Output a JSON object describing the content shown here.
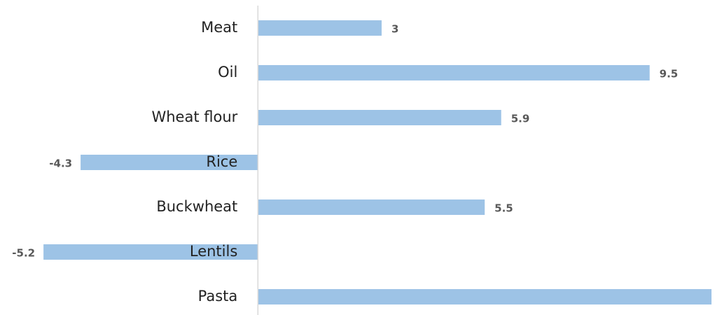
{
  "chart_data": {
    "type": "barh",
    "categories": [
      "Meat",
      "Oil",
      "Wheat flour",
      "Rice",
      "Buckwheat",
      "Lentils",
      "Pasta"
    ],
    "values": [
      3,
      9.5,
      5.9,
      -4.3,
      5.5,
      -5.2,
      11
    ],
    "color": "#9dc3e6",
    "xlim": [
      -6,
      11
    ]
  }
}
